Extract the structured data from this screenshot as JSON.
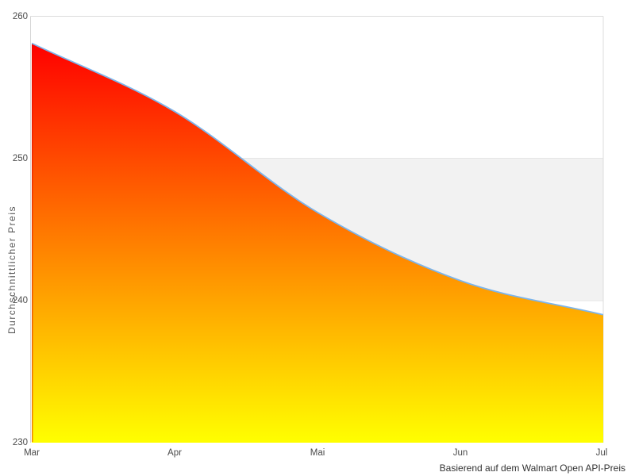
{
  "chart_data": {
    "type": "area",
    "categories": [
      "Mar",
      "Apr",
      "Mai",
      "Jun",
      "Jul"
    ],
    "values": [
      258.1,
      253.3,
      246.2,
      241.4,
      239.0
    ],
    "series_name": "Durchschnittlicher Preis",
    "title": "",
    "xlabel": "",
    "ylabel": "Durchschnittlicher Preis",
    "caption": "Basierend auf dem Walmart Open API-Preis",
    "ylim": [
      230,
      260
    ],
    "yticks": [
      230,
      240,
      250,
      260
    ],
    "grid": "partial",
    "legend": false,
    "plot_band": {
      "from": 240,
      "to": 250,
      "color": "#f2f2f2",
      "border_color": "#e6e6e6"
    },
    "colors": {
      "line": "#7cb5ec",
      "area_gradient_top": "#ff0000",
      "area_gradient_bottom": "#ffff00",
      "area_left_edge": "#e00b00",
      "axis_line": "#d6d6d6",
      "plot_border": "#dcdcdc",
      "tick_text": "#4a4a4a",
      "caption_text": "#333333",
      "background": "#ffffff"
    }
  }
}
